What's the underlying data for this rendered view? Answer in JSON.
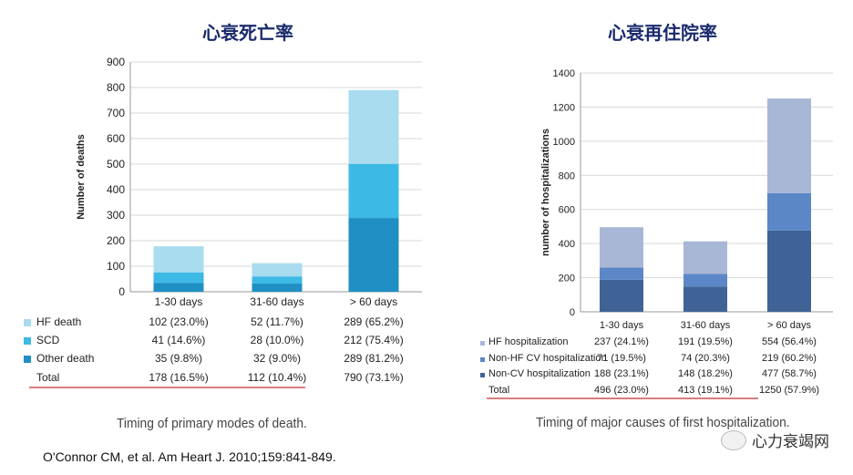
{
  "titles": {
    "left": "心衰死亡率",
    "right": "心衰再住院率"
  },
  "chart_data": [
    {
      "type": "bar",
      "stacked": true,
      "ylabel": "Number of deaths",
      "ylim": [
        0,
        900
      ],
      "yticks": [
        0,
        100,
        200,
        300,
        400,
        500,
        600,
        700,
        800,
        900
      ],
      "categories": [
        "1-30 days",
        "31-60 days",
        "> 60 days"
      ],
      "series": [
        {
          "name": "Other death",
          "color": "#1f8fc4",
          "values": [
            35,
            32,
            289
          ],
          "labels": [
            "35 (9.8%)",
            "32 (9.0%)",
            "289 (81.2%)"
          ]
        },
        {
          "name": "SCD",
          "color": "#3db9e6",
          "values": [
            41,
            28,
            212
          ],
          "labels": [
            "41 (14.6%)",
            "28 (10.0%)",
            "212 (75.4%)"
          ]
        },
        {
          "name": "HF death",
          "color": "#a8dcee",
          "values": [
            102,
            52,
            289
          ],
          "labels": [
            "102 (23.0%)",
            "52 (11.7%)",
            "289 (65.2%)"
          ]
        }
      ],
      "table_rows": [
        {
          "label": "HF death",
          "series": 2
        },
        {
          "label": "SCD",
          "series": 1
        },
        {
          "label": "Other death",
          "series": 0
        }
      ],
      "total": {
        "label": "Total",
        "values": [
          "178 (16.5%)",
          "112 (10.4%)",
          "790 (73.1%)"
        ]
      },
      "caption": "Timing of primary modes of death."
    },
    {
      "type": "bar",
      "stacked": true,
      "ylabel": "number of hospitalizations",
      "ylim": [
        0,
        1400
      ],
      "yticks": [
        0,
        200,
        400,
        600,
        800,
        1000,
        1200,
        1400
      ],
      "categories": [
        "1-30 days",
        "31-60 days",
        "> 60 days"
      ],
      "series": [
        {
          "name": "Non-CV hospitalization",
          "color": "#3f6396",
          "values": [
            188,
            148,
            477
          ],
          "labels": [
            "188 (23.1%)",
            "148 (18.2%)",
            "477 (58.7%)"
          ]
        },
        {
          "name": "Non-HF CV hospitalization",
          "color": "#5b87c6",
          "values": [
            71,
            74,
            219
          ],
          "labels": [
            "71 (19.5%)",
            "74 (20.3%)",
            "219 (60.2%)"
          ]
        },
        {
          "name": "HF hospitalization",
          "color": "#a9b7d6",
          "values": [
            237,
            191,
            554
          ],
          "labels": [
            "237 (24.1%)",
            "191 (19.5%)",
            "554 (56.4%)"
          ]
        }
      ],
      "table_rows": [
        {
          "label": "HF hospitalization",
          "series": 2
        },
        {
          "label": "Non-HF CV hospitalization",
          "series": 1
        },
        {
          "label": "Non-CV hospitalization",
          "series": 0
        }
      ],
      "total": {
        "label": "Total",
        "values": [
          "496 (23.0%)",
          "413 (19.1%)",
          "1250 (57.9%)"
        ]
      },
      "caption": "Timing of major causes of first hospitalization."
    }
  ],
  "citation": "O'Connor CM, et al. Am Heart J. 2010;159:841-849.",
  "watermark": "心力衰竭网"
}
